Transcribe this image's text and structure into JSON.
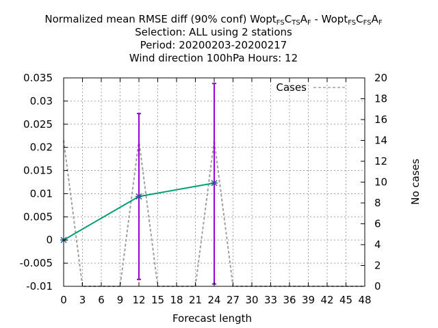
{
  "chart_data": {
    "type": "line",
    "title": {
      "line1_prefix": "Normalized mean RMSE diff (90% conf) Wopt",
      "exp_a": [
        [
          "FS",
          "sub"
        ],
        [
          "C",
          "main"
        ],
        [
          "TS",
          "sub"
        ],
        [
          "A",
          "main"
        ],
        [
          "F",
          "sub"
        ]
      ],
      "separator": " - Wopt",
      "exp_b": [
        [
          "FS",
          "sub"
        ],
        [
          "C",
          "main"
        ],
        [
          "FS",
          "sub"
        ],
        [
          "A",
          "main"
        ],
        [
          "F",
          "sub"
        ]
      ],
      "line2": "Selection: ALL using     2 stations",
      "line3": "Period: 20200203-20200217",
      "line4": "Wind direction 100hPa   Hours:  12"
    },
    "xlabel": "Forecast length",
    "ylabel_right": "No cases",
    "x_ticks": [
      "0",
      "3",
      "6",
      "9",
      "12",
      "15",
      "18",
      "21",
      "24",
      "27",
      "30",
      "33",
      "36",
      "39",
      "42",
      "45",
      "48"
    ],
    "xlim": [
      0,
      48
    ],
    "y_left_ticks": [
      "0.035",
      "0.03",
      "0.025",
      "0.02",
      "0.015",
      "0.01",
      "0.005",
      "0",
      "-0.005",
      "-0.01"
    ],
    "ylim_left": [
      -0.01,
      0.035
    ],
    "y_right_ticks": [
      "20",
      "18",
      "16",
      "14",
      "12",
      "10",
      "8",
      "6",
      "4",
      "2",
      "0"
    ],
    "ylim_right": [
      0,
      20
    ],
    "grid": true,
    "legend": {
      "position": "top-right",
      "label": "Cases"
    },
    "colors": {
      "mean": "#009e73",
      "errorbar": "#9400d3",
      "cases": "#a0a0a0",
      "marker": "#1f5f8b",
      "grid": "#a0a0a0"
    },
    "series": [
      {
        "x": [
          0,
          12,
          24
        ],
        "y": [
          0.0,
          0.0094,
          0.0123
        ],
        "err_low": [
          0.0,
          -0.0085,
          -0.0095
        ],
        "err_high": [
          0.0,
          0.0273,
          0.0338
        ]
      },
      {
        "name": "Cases",
        "axis": "right",
        "x": [
          0,
          3,
          9,
          12,
          15,
          21,
          24,
          27,
          48
        ],
        "y": [
          14,
          0,
          0,
          14,
          0,
          0,
          14,
          0,
          0
        ]
      }
    ]
  }
}
